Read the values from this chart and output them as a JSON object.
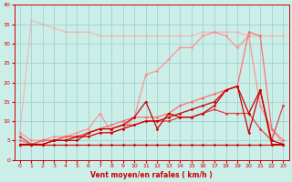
{
  "bg_color": "#cceee8",
  "grid_color": "#99cccc",
  "xlabel": "Vent moyen/en rafales ( km/h )",
  "xlabel_color": "#cc0000",
  "axis_color": "#cc0000",
  "tick_color": "#cc0000",
  "xlim": [
    -0.5,
    23.5
  ],
  "ylim": [
    0,
    40
  ],
  "xticks": [
    0,
    1,
    2,
    3,
    4,
    5,
    6,
    7,
    8,
    9,
    10,
    11,
    12,
    13,
    14,
    15,
    16,
    17,
    18,
    19,
    20,
    21,
    22,
    23
  ],
  "yticks": [
    0,
    5,
    10,
    15,
    20,
    25,
    30,
    35,
    40
  ],
  "series": [
    {
      "name": "flat_base",
      "x": [
        0,
        1,
        2,
        3,
        4,
        5,
        6,
        7,
        8,
        9,
        10,
        11,
        12,
        13,
        14,
        15,
        16,
        17,
        18,
        19,
        20,
        21,
        22,
        23
      ],
      "y": [
        4,
        4,
        4,
        4,
        4,
        4,
        4,
        4,
        4,
        4,
        4,
        4,
        4,
        4,
        4,
        4,
        4,
        4,
        4,
        4,
        4,
        4,
        4,
        4
      ],
      "color": "#cc0000",
      "linewidth": 0.8,
      "marker": "D",
      "markersize": 1.5,
      "alpha": 1.0,
      "zorder": 4
    },
    {
      "name": "line2_dark_red_gradual",
      "x": [
        0,
        1,
        2,
        3,
        4,
        5,
        6,
        7,
        8,
        9,
        10,
        11,
        12,
        13,
        14,
        15,
        16,
        17,
        18,
        19,
        20,
        21,
        22,
        23
      ],
      "y": [
        4,
        4,
        4,
        5,
        5,
        6,
        6,
        7,
        7,
        8,
        9,
        10,
        10,
        11,
        12,
        13,
        14,
        15,
        18,
        19,
        12,
        18,
        5,
        4
      ],
      "color": "#cc0000",
      "linewidth": 0.9,
      "marker": "D",
      "markersize": 1.5,
      "alpha": 1.0,
      "zorder": 4
    },
    {
      "name": "line3_dark_red_spiky",
      "x": [
        0,
        1,
        2,
        3,
        4,
        5,
        6,
        7,
        8,
        9,
        10,
        11,
        12,
        13,
        14,
        15,
        16,
        17,
        18,
        19,
        20,
        21,
        22,
        23
      ],
      "y": [
        4,
        4,
        4,
        5,
        5,
        5,
        7,
        8,
        8,
        9,
        11,
        15,
        8,
        12,
        11,
        11,
        12,
        14,
        18,
        19,
        7,
        18,
        4,
        4
      ],
      "color": "#cc0000",
      "linewidth": 0.9,
      "marker": "D",
      "markersize": 1.5,
      "alpha": 1.0,
      "zorder": 4
    },
    {
      "name": "line4_medium_red",
      "x": [
        0,
        1,
        2,
        3,
        4,
        5,
        6,
        7,
        8,
        9,
        10,
        11,
        12,
        13,
        14,
        15,
        16,
        17,
        18,
        19,
        20,
        21,
        22,
        23
      ],
      "y": [
        6,
        4,
        5,
        5,
        6,
        6,
        7,
        8,
        8,
        9,
        9,
        10,
        10,
        10,
        11,
        11,
        12,
        13,
        12,
        12,
        12,
        8,
        5,
        14
      ],
      "color": "#dd3333",
      "linewidth": 0.9,
      "marker": "D",
      "markersize": 1.5,
      "alpha": 0.9,
      "zorder": 3
    },
    {
      "name": "line5_light_red_rising_spike",
      "x": [
        0,
        1,
        2,
        3,
        4,
        5,
        6,
        7,
        8,
        9,
        10,
        11,
        12,
        13,
        14,
        15,
        16,
        17,
        18,
        19,
        20,
        21,
        22,
        23
      ],
      "y": [
        5,
        4,
        5,
        5,
        6,
        6,
        7,
        8,
        9,
        10,
        11,
        11,
        11,
        12,
        14,
        15,
        16,
        17,
        18,
        19,
        33,
        32,
        8,
        5
      ],
      "color": "#ff6666",
      "linewidth": 0.9,
      "marker": "D",
      "markersize": 1.5,
      "alpha": 0.9,
      "zorder": 3
    },
    {
      "name": "line6_pink_high",
      "x": [
        0,
        1,
        2,
        3,
        4,
        5,
        6,
        7,
        8,
        9,
        10,
        11,
        12,
        13,
        14,
        15,
        16,
        17,
        18,
        19,
        20,
        21,
        22,
        23
      ],
      "y": [
        7,
        5,
        5,
        6,
        6,
        7,
        8,
        12,
        7,
        8,
        11,
        22,
        23,
        26,
        29,
        29,
        32,
        33,
        32,
        29,
        32,
        14,
        8,
        4
      ],
      "color": "#ff8888",
      "linewidth": 0.9,
      "marker": "D",
      "markersize": 1.5,
      "alpha": 0.85,
      "zorder": 2
    },
    {
      "name": "line7_top_descending",
      "x": [
        0,
        1,
        2,
        3,
        4,
        5,
        6,
        7,
        8,
        9,
        10,
        11,
        12,
        13,
        14,
        15,
        16,
        17,
        18,
        19,
        20,
        21,
        22,
        23
      ],
      "y": [
        7,
        36,
        35,
        34,
        33,
        33,
        33,
        32,
        32,
        32,
        32,
        32,
        32,
        32,
        32,
        32,
        33,
        33,
        33,
        33,
        32,
        32,
        32,
        32
      ],
      "color": "#ffaaaa",
      "linewidth": 0.9,
      "marker": "D",
      "markersize": 1.5,
      "alpha": 0.8,
      "zorder": 1
    }
  ]
}
